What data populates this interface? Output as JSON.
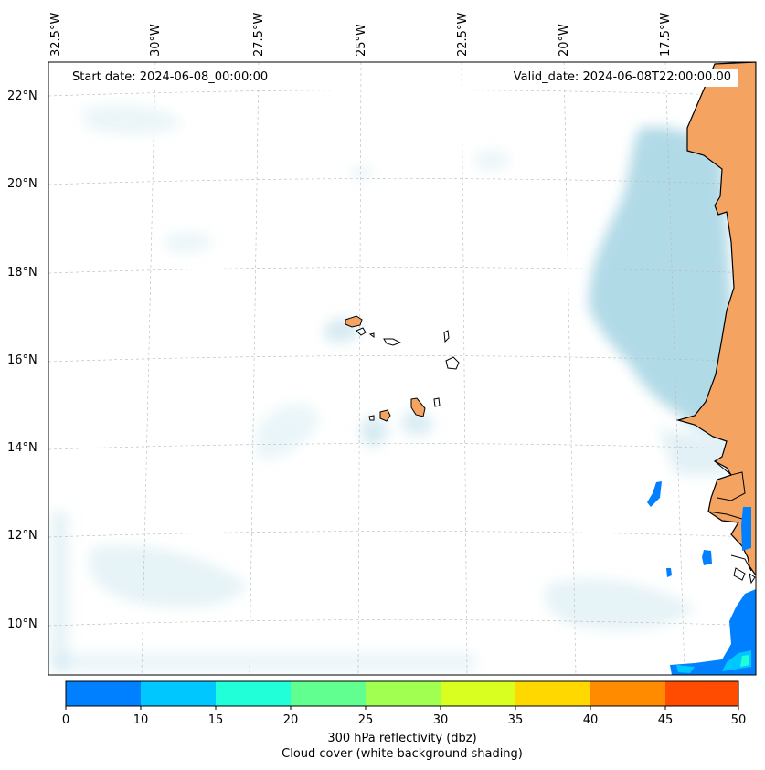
{
  "map": {
    "start_date": "Start date: 2024-06-08_00:00:00",
    "valid_date": "Valid_date: 2024-06-08T22:00:00.00",
    "longitude_labels": [
      "32.5°W",
      "30°W",
      "27.5°W",
      "25°W",
      "22.5°W",
      "20°W",
      "17.5°W"
    ],
    "latitude_labels": [
      "22°N",
      "20°N",
      "18°N",
      "16°N",
      "14°N",
      "12°N",
      "10°N"
    ],
    "land_color": "#f4a460",
    "cloud_color": "#add8e6",
    "reflectivity_color": "#0080ff"
  },
  "colorbar": {
    "ticks": [
      "0",
      "10",
      "15",
      "20",
      "25",
      "30",
      "35",
      "40",
      "45",
      "50"
    ],
    "colors": [
      "#0080ff",
      "#00c8ff",
      "#20ffd8",
      "#60ff90",
      "#a0ff50",
      "#d8ff20",
      "#ffd800",
      "#ff8c00",
      "#ff4c00"
    ],
    "label_line1": "300 hPa reflectivity (dbz)",
    "label_line2": "Cloud cover (white background shading)"
  }
}
